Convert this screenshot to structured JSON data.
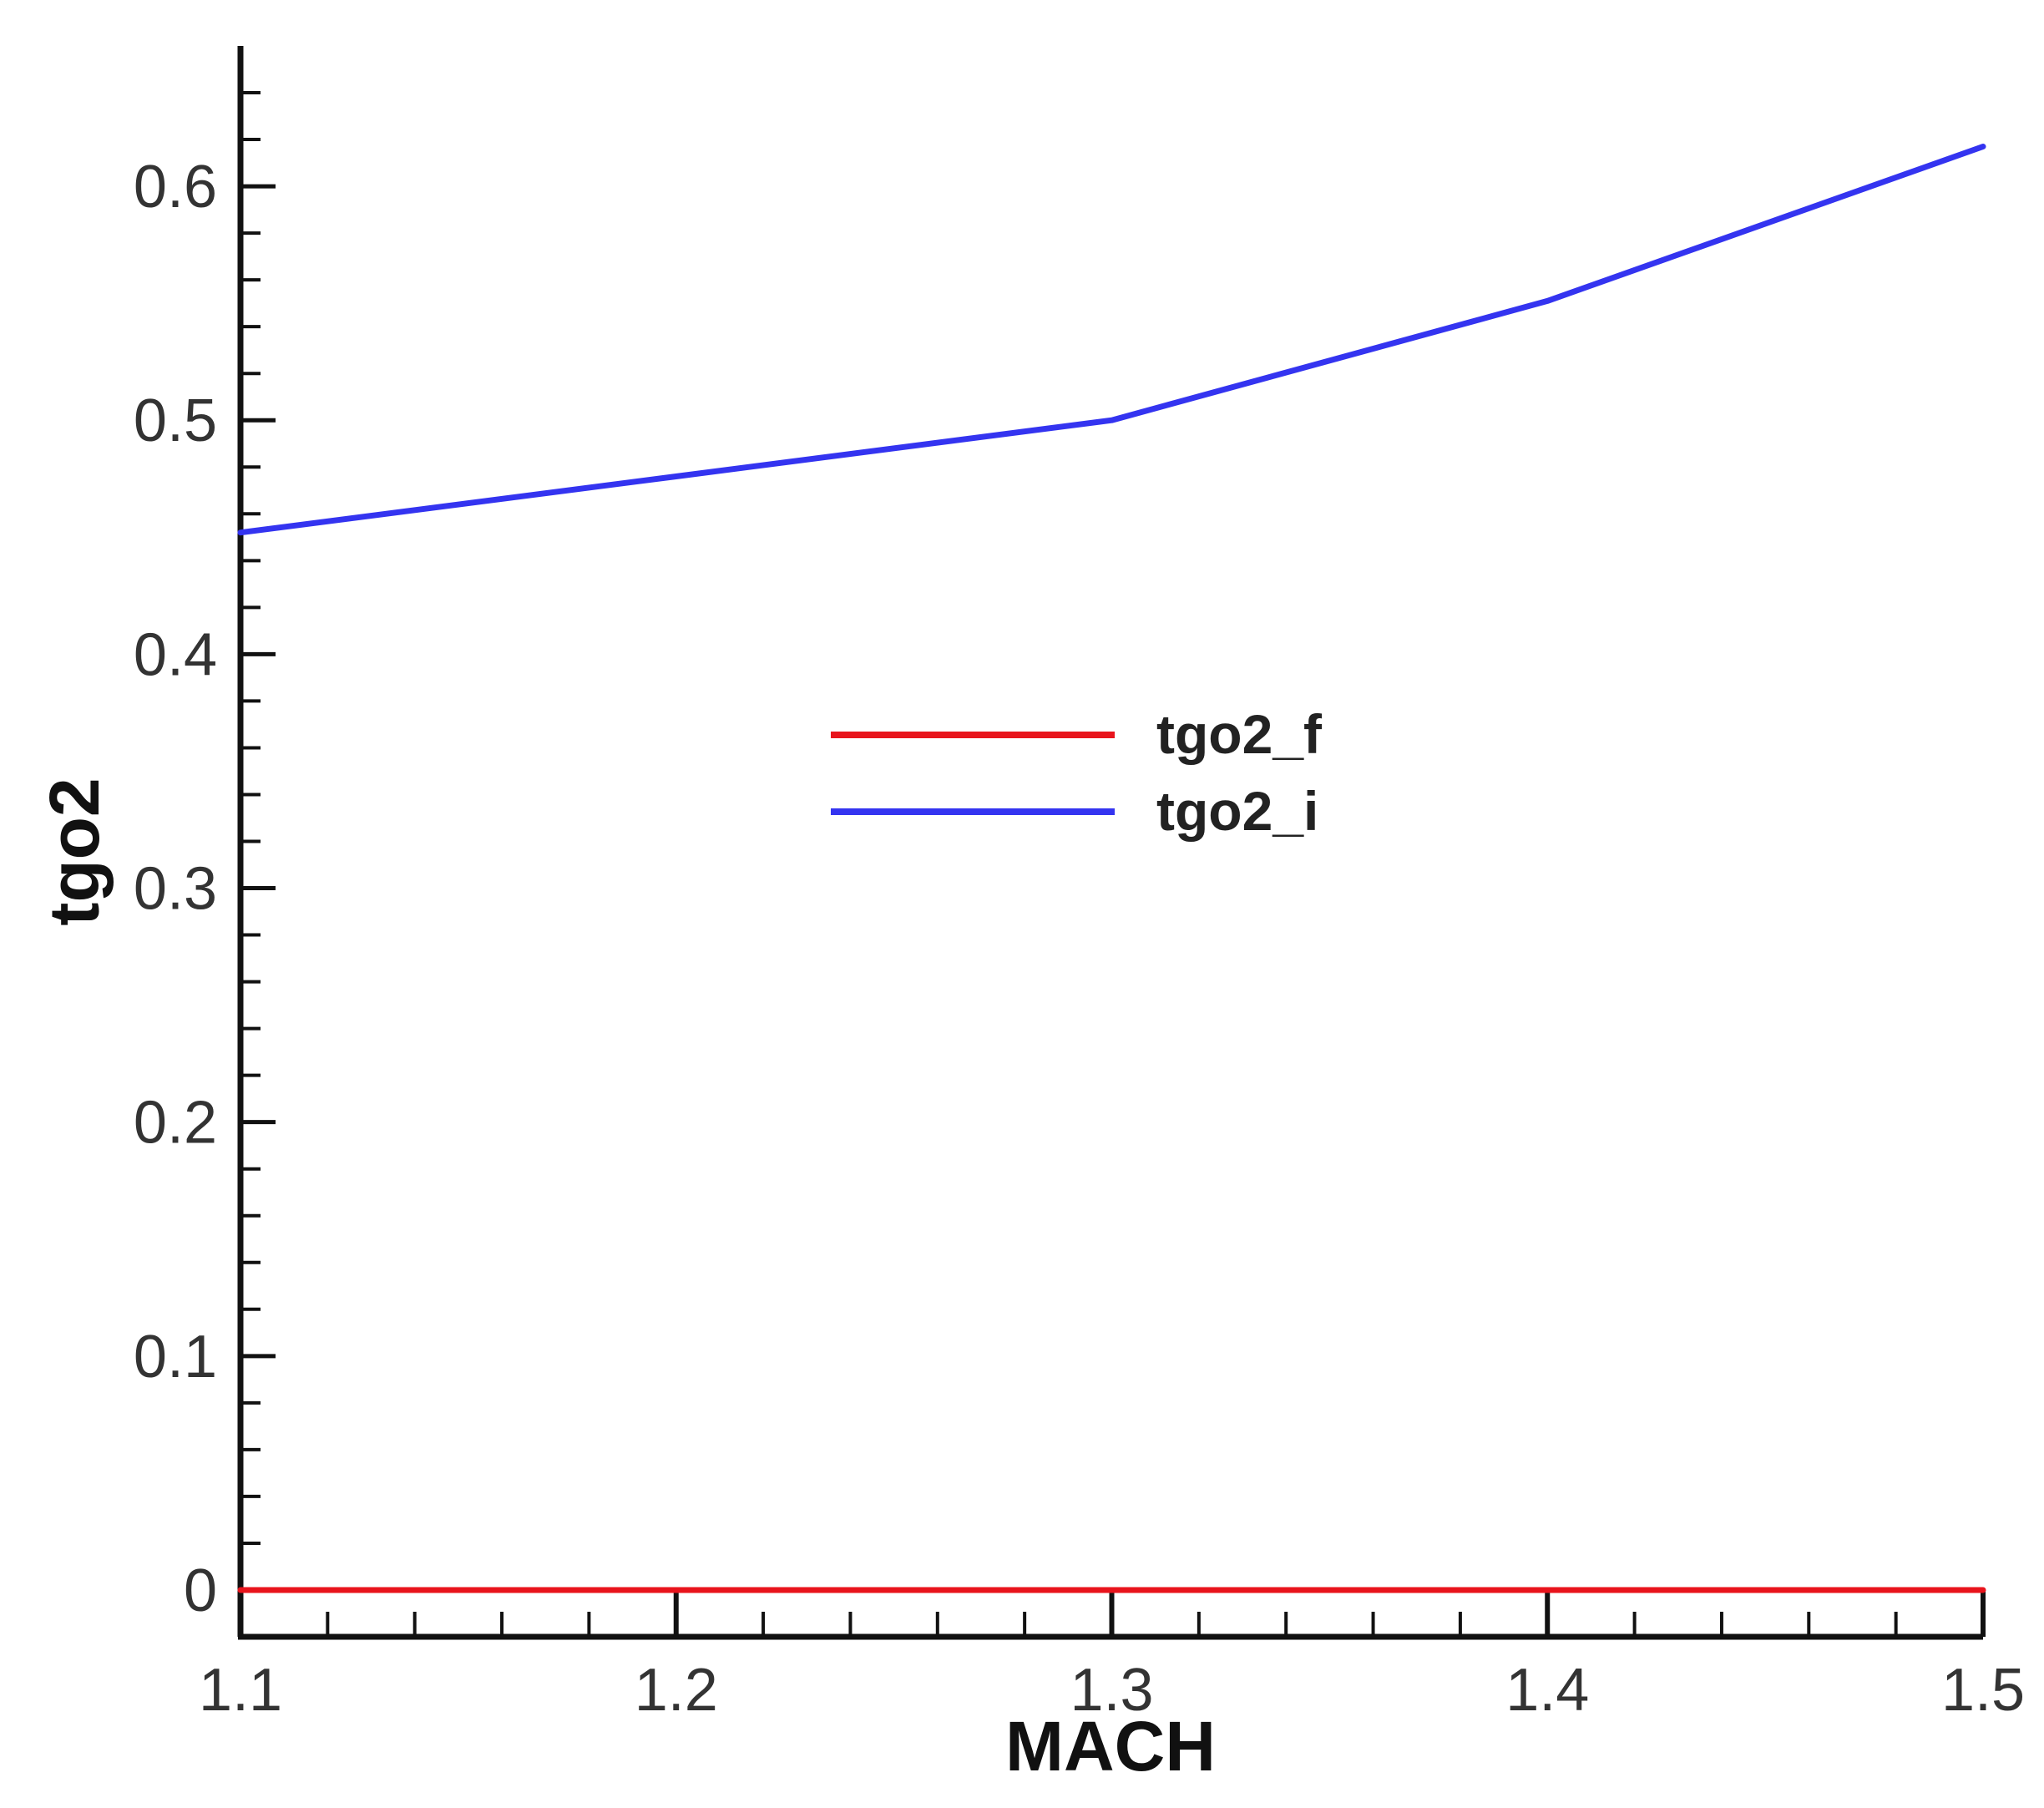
{
  "chart_data": {
    "type": "line",
    "title": "",
    "xlabel": "MACH",
    "ylabel": "tgo2",
    "xlim": [
      1.1,
      1.5
    ],
    "ylim": [
      -0.02,
      0.66
    ],
    "x_ticks": [
      1.1,
      1.2,
      1.3,
      1.4,
      1.5
    ],
    "x_tick_labels": [
      "1.1",
      "1.2",
      "1.3",
      "1.4",
      "1.5"
    ],
    "y_ticks": [
      0,
      0.1,
      0.2,
      0.3,
      0.4,
      0.5,
      0.6
    ],
    "y_tick_labels": [
      "0",
      "0.1",
      "0.2",
      "0.3",
      "0.4",
      "0.5",
      "0.6"
    ],
    "grid": false,
    "legend_position": "center",
    "series": [
      {
        "name": "tgo2_f",
        "color": "#e8141c",
        "x": [
          1.1,
          1.2,
          1.3,
          1.4,
          1.5
        ],
        "y": [
          0,
          0,
          0,
          0,
          0
        ]
      },
      {
        "name": "tgo2_i",
        "color": "#3434f0",
        "x": [
          1.1,
          1.2,
          1.3,
          1.4,
          1.5
        ],
        "y": [
          0.452,
          0.476,
          0.5,
          0.551,
          0.617
        ]
      }
    ]
  }
}
